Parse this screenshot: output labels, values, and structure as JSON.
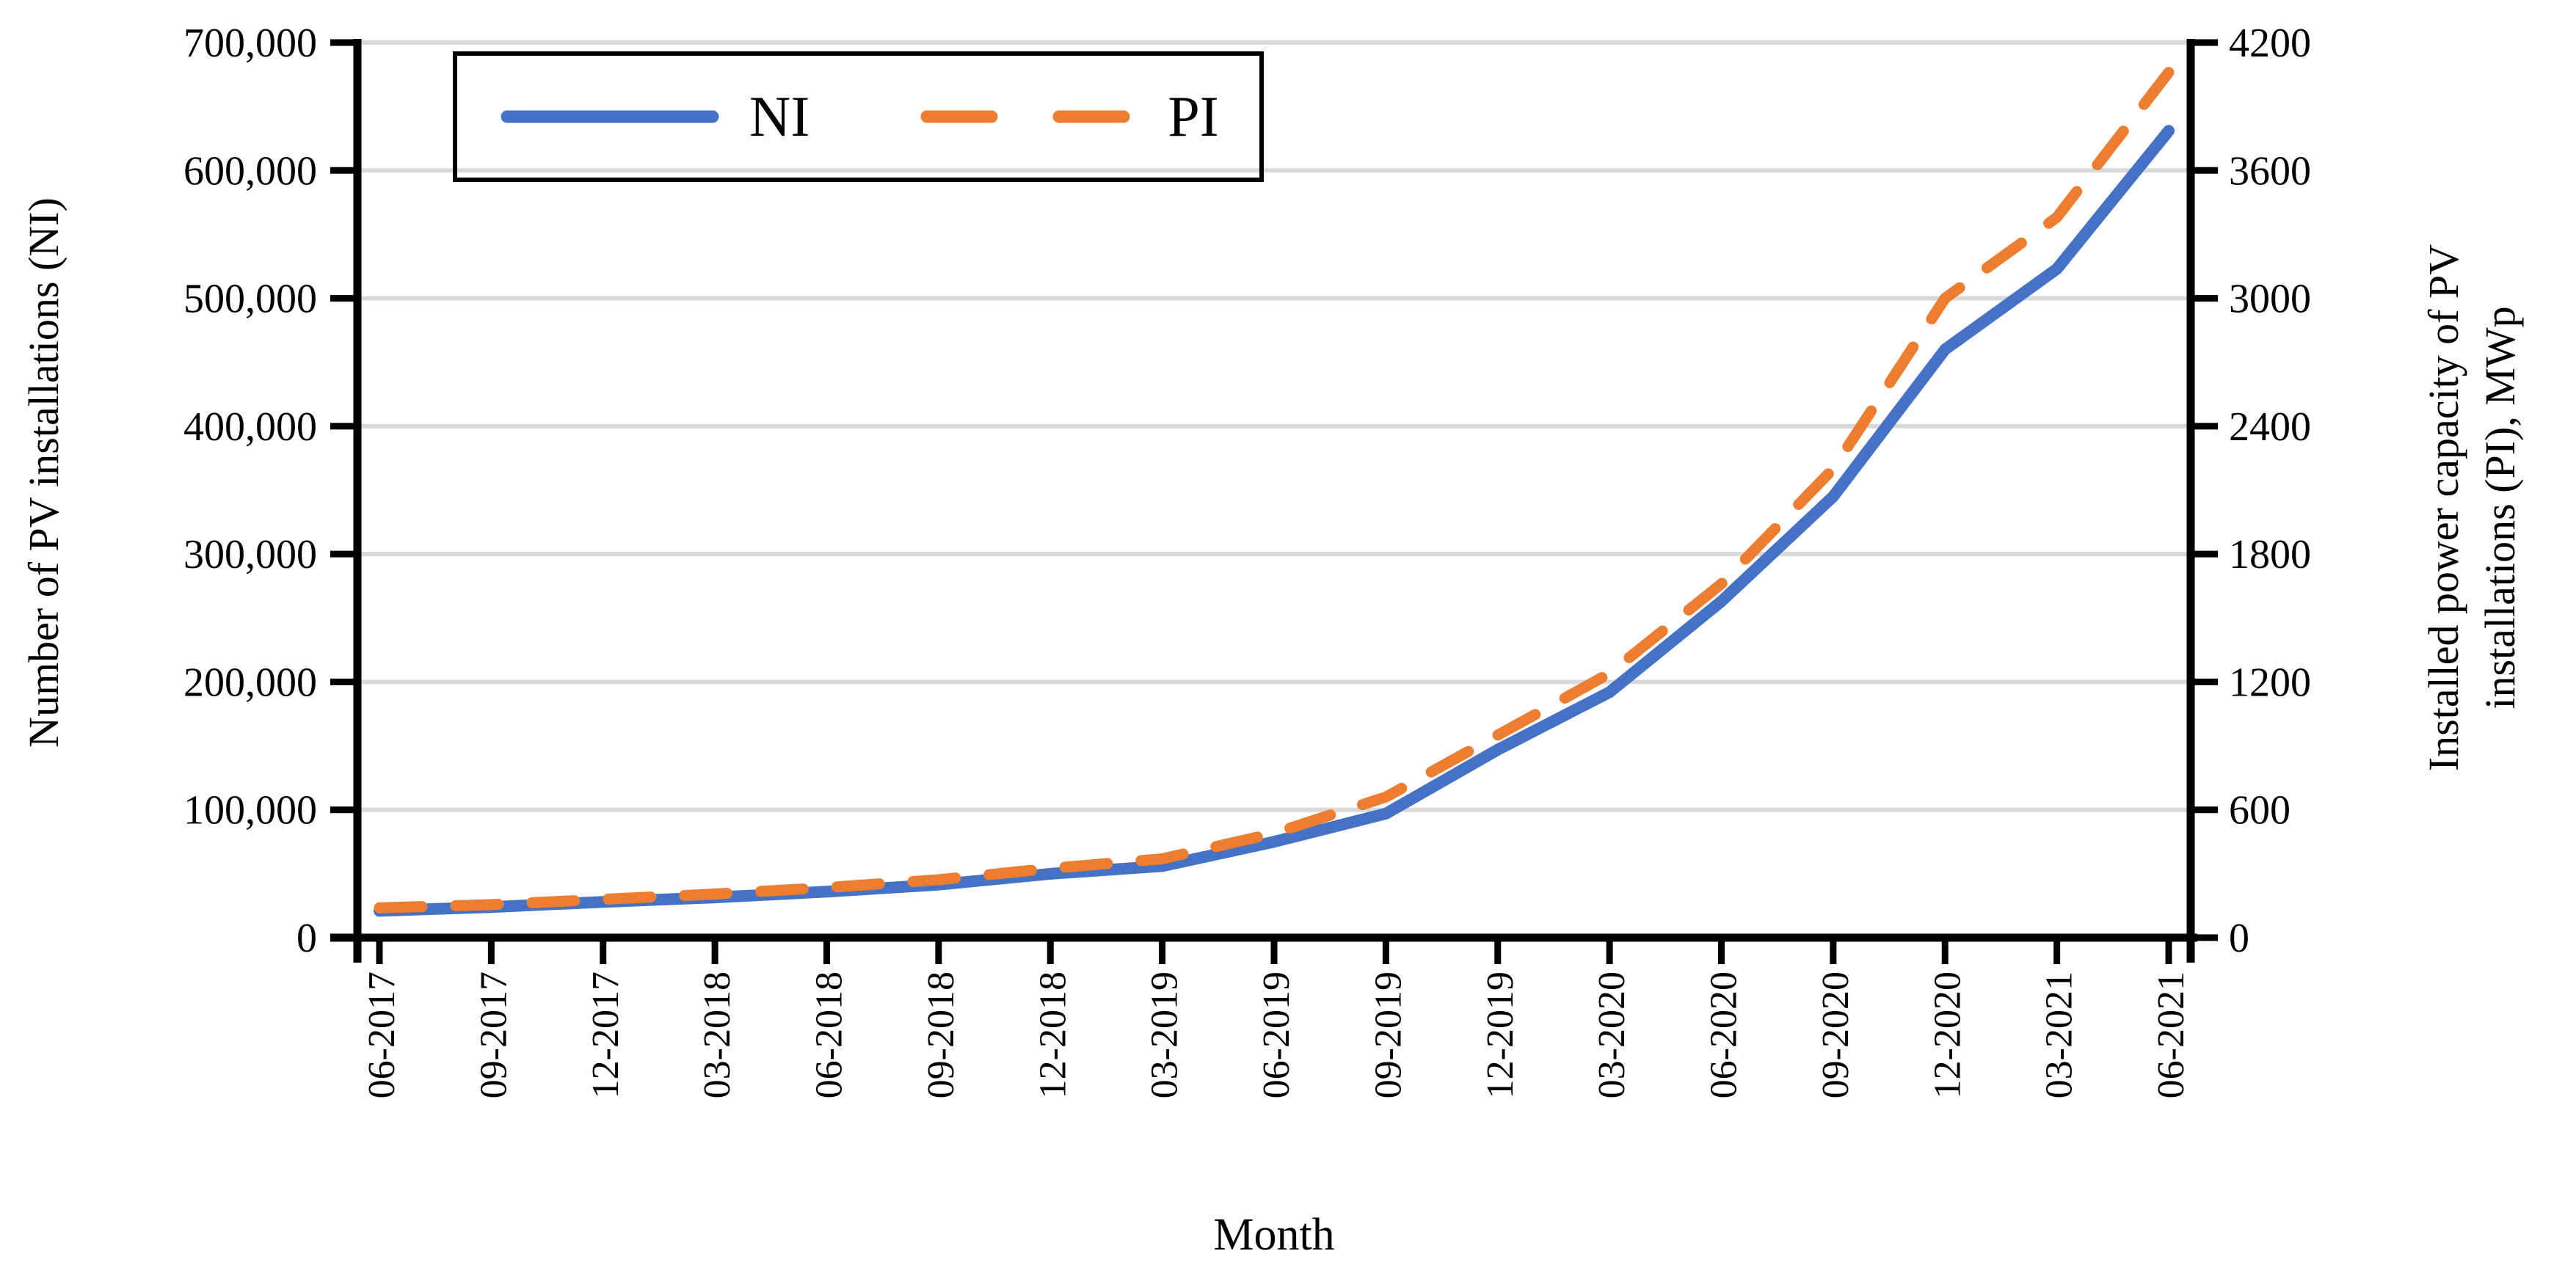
{
  "chart_data": {
    "type": "line",
    "title": "",
    "x_categories": [
      "06-2017",
      "09-2017",
      "12-2017",
      "03-2018",
      "06-2018",
      "09-2018",
      "12-2018",
      "03-2019",
      "06-2019",
      "09-2019",
      "12-2019",
      "03-2020",
      "06-2020",
      "09-2020",
      "12-2020",
      "03-2021",
      "06-2021"
    ],
    "series": [
      {
        "name": "NI",
        "axis": "left",
        "style": "solid",
        "color": "#4472C4",
        "values": [
          21000,
          24000,
          28000,
          31500,
          36000,
          41500,
          50000,
          56000,
          75000,
          97000,
          147000,
          192000,
          263000,
          345000,
          460000,
          523000,
          631000
        ]
      },
      {
        "name": "PI",
        "axis": "right",
        "style": "dashed",
        "color": "#ED7D31",
        "values": [
          140,
          155,
          180,
          205,
          235,
          272,
          325,
          370,
          490,
          660,
          950,
          1240,
          1660,
          2200,
          3000,
          3380,
          4060
        ]
      }
    ],
    "left_axis": {
      "title": "Number of PV installations (NI)",
      "min": 0,
      "max": 700000,
      "step": 100000,
      "tick_labels": [
        "0",
        "100,000",
        "200,000",
        "300,000",
        "400,000",
        "500,000",
        "600,000",
        "700,000"
      ]
    },
    "right_axis": {
      "title_lines": [
        "Installed power capacity of PV",
        "installations (PI),  MWp"
      ],
      "min": 0,
      "max": 4200,
      "step": 600,
      "tick_labels": [
        "0",
        "600",
        "1200",
        "1800",
        "2400",
        "3000",
        "3600",
        "4200"
      ]
    },
    "x_axis": {
      "title": "Month"
    },
    "legend": {
      "position": "top-left",
      "border": true
    },
    "grid": true,
    "colors": {
      "grid": "#D9D9D9",
      "axis": "#000000",
      "ni": "#4472C4",
      "pi": "#ED7D31"
    }
  }
}
